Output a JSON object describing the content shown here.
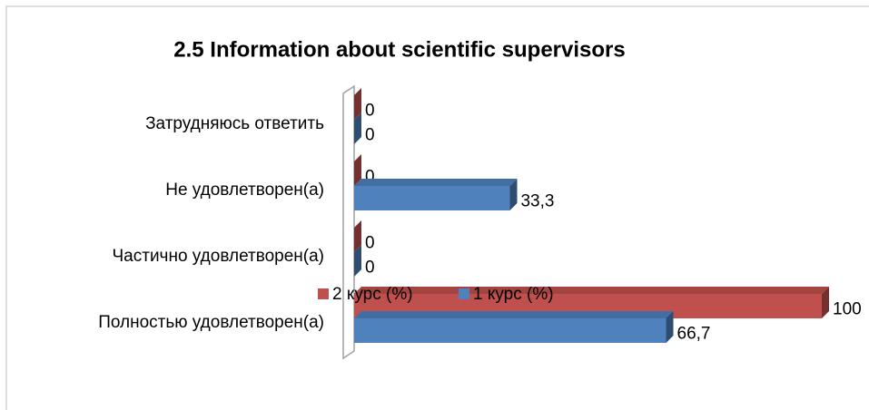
{
  "chart_data": {
    "type": "bar",
    "orientation": "horizontal",
    "title": "2.5 Information about scientific supervisors",
    "categories": [
      "Затрудняюсь ответить",
      "Не удовлетворен(а)",
      "Частично удовлетворен(а)",
      "Полностью удовлетворен(а)"
    ],
    "series": [
      {
        "name": "2 курс (%)",
        "color": "#c0504d",
        "values": [
          0,
          0,
          0,
          100
        ],
        "value_labels": [
          "0",
          "0",
          "0",
          "100"
        ]
      },
      {
        "name": "1 курс (%)",
        "color": "#4f81bd",
        "values": [
          0,
          33.3,
          0,
          66.7
        ],
        "value_labels": [
          "0",
          "33,3",
          "0",
          "66,7"
        ]
      }
    ],
    "xlim": [
      0,
      100
    ],
    "legend": "bottom"
  }
}
